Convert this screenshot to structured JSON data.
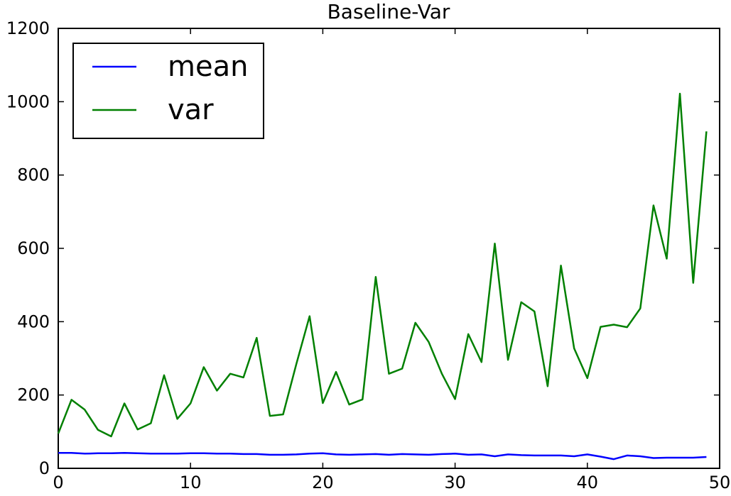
{
  "chart_data": {
    "type": "line",
    "title": "Baseline-Var",
    "xlabel": "",
    "ylabel": "",
    "xlim": [
      0,
      50
    ],
    "ylim": [
      0,
      1200
    ],
    "x_ticks": [
      "0",
      "10",
      "20",
      "30",
      "40",
      "50"
    ],
    "y_ticks": [
      "0",
      "200",
      "400",
      "600",
      "800",
      "1000",
      "1200"
    ],
    "grid": false,
    "legend": "upper-left",
    "x": [
      0,
      1,
      2,
      3,
      4,
      5,
      6,
      7,
      8,
      9,
      10,
      11,
      12,
      13,
      14,
      15,
      16,
      17,
      18,
      19,
      20,
      21,
      22,
      23,
      24,
      25,
      26,
      27,
      28,
      29,
      30,
      31,
      32,
      33,
      34,
      35,
      36,
      37,
      38,
      39,
      40,
      41,
      42,
      43,
      44,
      45,
      46,
      47,
      48,
      49
    ],
    "series": [
      {
        "name": "mean",
        "color": "#0000ff",
        "values": [
          42,
          42,
          40,
          41,
          41,
          42,
          41,
          40,
          40,
          40,
          41,
          41,
          40,
          40,
          39,
          39,
          37,
          37,
          38,
          40,
          41,
          38,
          37,
          38,
          39,
          37,
          39,
          38,
          37,
          39,
          40,
          37,
          38,
          33,
          38,
          36,
          35,
          35,
          35,
          33,
          38,
          32,
          25,
          35,
          33,
          28,
          29,
          29,
          29,
          31
        ]
      },
      {
        "name": "var",
        "color": "#008000",
        "values": [
          95,
          187,
          160,
          105,
          87,
          177,
          106,
          123,
          254,
          135,
          177,
          276,
          212,
          258,
          248,
          356,
          143,
          147,
          285,
          415,
          178,
          263,
          174,
          188,
          522,
          258,
          272,
          397,
          345,
          258,
          189,
          366,
          290,
          613,
          296,
          453,
          428,
          224,
          553,
          327,
          246,
          386,
          392,
          385,
          436,
          717,
          572,
          1022,
          506,
          919
        ]
      }
    ]
  }
}
